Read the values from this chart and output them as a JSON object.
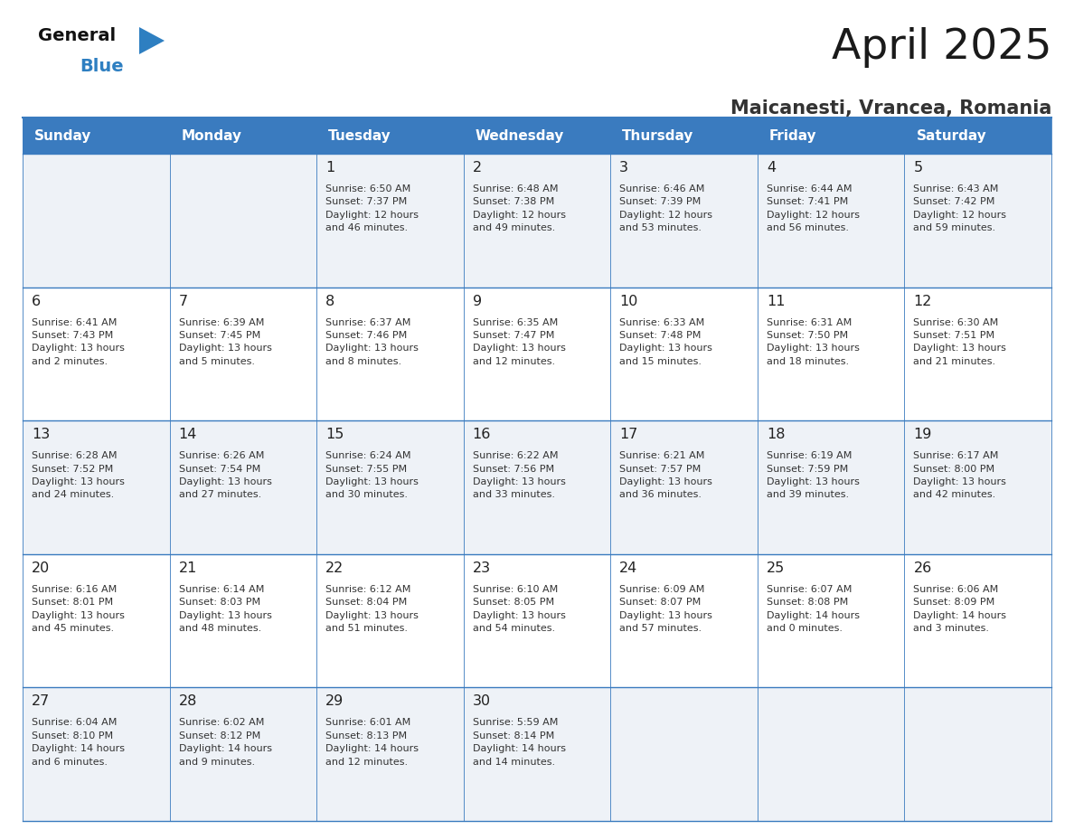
{
  "title": "April 2025",
  "subtitle": "Maicanesti, Vrancea, Romania",
  "header_bg": "#3a7bbf",
  "header_text": "#ffffff",
  "row_bg_light": "#eef2f7",
  "row_bg_white": "#ffffff",
  "cell_border_color": "#3a7bbf",
  "day_number_color": "#222222",
  "cell_text_color": "#333333",
  "logo_black": "#111111",
  "logo_blue": "#2e7fc1",
  "title_color": "#1a1a1a",
  "subtitle_color": "#333333",
  "days_of_week": [
    "Sunday",
    "Monday",
    "Tuesday",
    "Wednesday",
    "Thursday",
    "Friday",
    "Saturday"
  ],
  "weeks": [
    [
      {
        "day": "",
        "info": ""
      },
      {
        "day": "",
        "info": ""
      },
      {
        "day": "1",
        "info": "Sunrise: 6:50 AM\nSunset: 7:37 PM\nDaylight: 12 hours\nand 46 minutes."
      },
      {
        "day": "2",
        "info": "Sunrise: 6:48 AM\nSunset: 7:38 PM\nDaylight: 12 hours\nand 49 minutes."
      },
      {
        "day": "3",
        "info": "Sunrise: 6:46 AM\nSunset: 7:39 PM\nDaylight: 12 hours\nand 53 minutes."
      },
      {
        "day": "4",
        "info": "Sunrise: 6:44 AM\nSunset: 7:41 PM\nDaylight: 12 hours\nand 56 minutes."
      },
      {
        "day": "5",
        "info": "Sunrise: 6:43 AM\nSunset: 7:42 PM\nDaylight: 12 hours\nand 59 minutes."
      }
    ],
    [
      {
        "day": "6",
        "info": "Sunrise: 6:41 AM\nSunset: 7:43 PM\nDaylight: 13 hours\nand 2 minutes."
      },
      {
        "day": "7",
        "info": "Sunrise: 6:39 AM\nSunset: 7:45 PM\nDaylight: 13 hours\nand 5 minutes."
      },
      {
        "day": "8",
        "info": "Sunrise: 6:37 AM\nSunset: 7:46 PM\nDaylight: 13 hours\nand 8 minutes."
      },
      {
        "day": "9",
        "info": "Sunrise: 6:35 AM\nSunset: 7:47 PM\nDaylight: 13 hours\nand 12 minutes."
      },
      {
        "day": "10",
        "info": "Sunrise: 6:33 AM\nSunset: 7:48 PM\nDaylight: 13 hours\nand 15 minutes."
      },
      {
        "day": "11",
        "info": "Sunrise: 6:31 AM\nSunset: 7:50 PM\nDaylight: 13 hours\nand 18 minutes."
      },
      {
        "day": "12",
        "info": "Sunrise: 6:30 AM\nSunset: 7:51 PM\nDaylight: 13 hours\nand 21 minutes."
      }
    ],
    [
      {
        "day": "13",
        "info": "Sunrise: 6:28 AM\nSunset: 7:52 PM\nDaylight: 13 hours\nand 24 minutes."
      },
      {
        "day": "14",
        "info": "Sunrise: 6:26 AM\nSunset: 7:54 PM\nDaylight: 13 hours\nand 27 minutes."
      },
      {
        "day": "15",
        "info": "Sunrise: 6:24 AM\nSunset: 7:55 PM\nDaylight: 13 hours\nand 30 minutes."
      },
      {
        "day": "16",
        "info": "Sunrise: 6:22 AM\nSunset: 7:56 PM\nDaylight: 13 hours\nand 33 minutes."
      },
      {
        "day": "17",
        "info": "Sunrise: 6:21 AM\nSunset: 7:57 PM\nDaylight: 13 hours\nand 36 minutes."
      },
      {
        "day": "18",
        "info": "Sunrise: 6:19 AM\nSunset: 7:59 PM\nDaylight: 13 hours\nand 39 minutes."
      },
      {
        "day": "19",
        "info": "Sunrise: 6:17 AM\nSunset: 8:00 PM\nDaylight: 13 hours\nand 42 minutes."
      }
    ],
    [
      {
        "day": "20",
        "info": "Sunrise: 6:16 AM\nSunset: 8:01 PM\nDaylight: 13 hours\nand 45 minutes."
      },
      {
        "day": "21",
        "info": "Sunrise: 6:14 AM\nSunset: 8:03 PM\nDaylight: 13 hours\nand 48 minutes."
      },
      {
        "day": "22",
        "info": "Sunrise: 6:12 AM\nSunset: 8:04 PM\nDaylight: 13 hours\nand 51 minutes."
      },
      {
        "day": "23",
        "info": "Sunrise: 6:10 AM\nSunset: 8:05 PM\nDaylight: 13 hours\nand 54 minutes."
      },
      {
        "day": "24",
        "info": "Sunrise: 6:09 AM\nSunset: 8:07 PM\nDaylight: 13 hours\nand 57 minutes."
      },
      {
        "day": "25",
        "info": "Sunrise: 6:07 AM\nSunset: 8:08 PM\nDaylight: 14 hours\nand 0 minutes."
      },
      {
        "day": "26",
        "info": "Sunrise: 6:06 AM\nSunset: 8:09 PM\nDaylight: 14 hours\nand 3 minutes."
      }
    ],
    [
      {
        "day": "27",
        "info": "Sunrise: 6:04 AM\nSunset: 8:10 PM\nDaylight: 14 hours\nand 6 minutes."
      },
      {
        "day": "28",
        "info": "Sunrise: 6:02 AM\nSunset: 8:12 PM\nDaylight: 14 hours\nand 9 minutes."
      },
      {
        "day": "29",
        "info": "Sunrise: 6:01 AM\nSunset: 8:13 PM\nDaylight: 14 hours\nand 12 minutes."
      },
      {
        "day": "30",
        "info": "Sunrise: 5:59 AM\nSunset: 8:14 PM\nDaylight: 14 hours\nand 14 minutes."
      },
      {
        "day": "",
        "info": ""
      },
      {
        "day": "",
        "info": ""
      },
      {
        "day": "",
        "info": ""
      }
    ]
  ]
}
